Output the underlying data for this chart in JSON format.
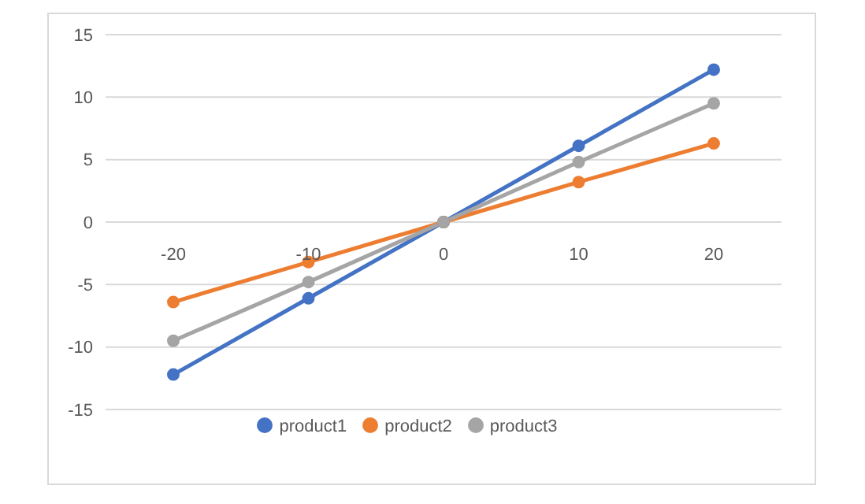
{
  "chart_data": {
    "type": "line",
    "categories": [
      "-20",
      "-10",
      "0",
      "10",
      "20"
    ],
    "series": [
      {
        "name": "product1",
        "color": "#4472c4",
        "values": [
          -12.2,
          -6.1,
          0,
          6.1,
          12.2
        ]
      },
      {
        "name": "product2",
        "color": "#ed7d31",
        "values": [
          -6.4,
          -3.2,
          0,
          3.2,
          6.3
        ]
      },
      {
        "name": "product3",
        "color": "#a5a5a5",
        "values": [
          -9.5,
          -4.8,
          0,
          4.8,
          9.5
        ]
      }
    ],
    "ylim": [
      -15,
      15
    ],
    "yticks": [
      -15,
      -10,
      -5,
      0,
      5,
      10,
      15
    ],
    "grid": "y",
    "legend": "bottom",
    "marker": "circle"
  }
}
